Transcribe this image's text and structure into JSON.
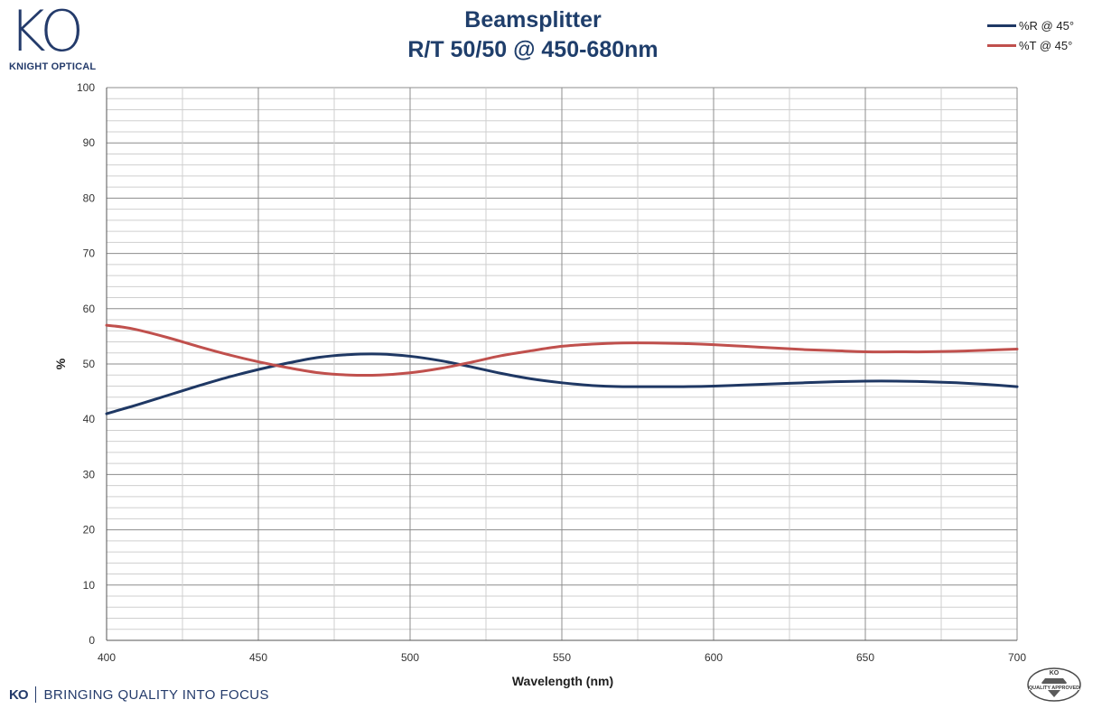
{
  "header": {
    "logo_mark": "KO",
    "logo_text": "KNIGHT OPTICAL"
  },
  "footer": {
    "mark": "KO",
    "tagline": "BRINGING QUALITY INTO FOCUS",
    "badge_top": "KO",
    "badge_bottom": "QUALITY APPROVED"
  },
  "colors": {
    "brand": "#243b6b",
    "title": "#1f3e6b",
    "series_r": "#1f3864",
    "series_t": "#c0504d"
  },
  "chart_data": {
    "type": "line",
    "title": "Beamsplitter",
    "subtitle": "R/T 50/50 @ 450-680nm",
    "xlabel": "Wavelength (nm)",
    "ylabel": "%",
    "xlim": [
      400,
      700
    ],
    "ylim": [
      0,
      100
    ],
    "x_ticks": [
      "400",
      "450",
      "500",
      "550",
      "600",
      "650",
      "700"
    ],
    "y_ticks": [
      "0",
      "10",
      "20",
      "30",
      "40",
      "50",
      "60",
      "70",
      "80",
      "90",
      "100"
    ],
    "grid": true,
    "legend_position": "top-right",
    "series": [
      {
        "name": "%R @ 45°",
        "color": "#1f3864",
        "x": [
          400,
          405,
          410,
          420,
          430,
          440,
          450,
          460,
          470,
          480,
          490,
          500,
          510,
          520,
          530,
          540,
          550,
          560,
          570,
          580,
          590,
          600,
          610,
          620,
          630,
          640,
          650,
          660,
          670,
          680,
          690,
          700
        ],
        "y": [
          41.0,
          41.8,
          42.6,
          44.3,
          46.0,
          47.6,
          49.0,
          50.2,
          51.2,
          51.7,
          51.8,
          51.4,
          50.6,
          49.5,
          48.3,
          47.3,
          46.6,
          46.1,
          45.9,
          45.9,
          45.9,
          46.0,
          46.2,
          46.4,
          46.6,
          46.8,
          46.9,
          46.9,
          46.8,
          46.6,
          46.3,
          45.9
        ]
      },
      {
        "name": "%T @ 45°",
        "color": "#c0504d",
        "x": [
          400,
          405,
          410,
          420,
          430,
          440,
          450,
          460,
          470,
          480,
          490,
          500,
          510,
          520,
          530,
          540,
          550,
          560,
          570,
          580,
          590,
          600,
          610,
          620,
          630,
          640,
          650,
          660,
          670,
          680,
          690,
          700
        ],
        "y": [
          57.0,
          56.7,
          56.2,
          54.8,
          53.2,
          51.7,
          50.4,
          49.3,
          48.4,
          48.0,
          48.0,
          48.4,
          49.2,
          50.3,
          51.5,
          52.4,
          53.2,
          53.6,
          53.8,
          53.8,
          53.7,
          53.5,
          53.2,
          52.9,
          52.6,
          52.4,
          52.2,
          52.2,
          52.2,
          52.3,
          52.5,
          52.7
        ]
      }
    ]
  }
}
